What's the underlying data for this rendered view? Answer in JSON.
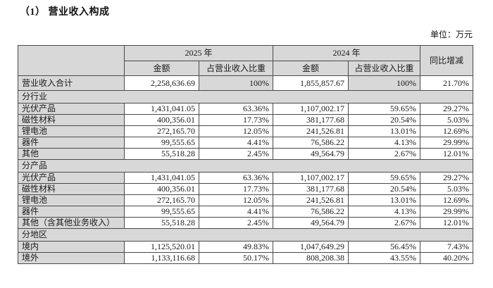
{
  "title": "（1） 营业收入构成",
  "unit_label": "单位：万元",
  "table": {
    "header": {
      "year_2025": "2025 年",
      "year_2024": "2024 年",
      "yoy": "同比增减",
      "amount": "金额",
      "share": "占营业收入比重"
    },
    "rows": [
      {
        "type": "total",
        "label": "营业收入合计",
        "a2025": "2,258,636.69",
        "s2025": "100%",
        "a2024": "1,855,857.67",
        "s2024": "100%",
        "yoy": "21.70%"
      },
      {
        "type": "section",
        "label": "分行业"
      },
      {
        "type": "data",
        "label": "光伏产品",
        "a2025": "1,431,041.05",
        "s2025": "63.36%",
        "a2024": "1,107,002.17",
        "s2024": "59.65%",
        "yoy": "29.27%"
      },
      {
        "type": "data",
        "label": "磁性材料",
        "a2025": "400,356.01",
        "s2025": "17.73%",
        "a2024": "381,177.68",
        "s2024": "20.54%",
        "yoy": "5.03%"
      },
      {
        "type": "data",
        "label": "锂电池",
        "a2025": "272,165.70",
        "s2025": "12.05%",
        "a2024": "241,526.81",
        "s2024": "13.01%",
        "yoy": "12.69%"
      },
      {
        "type": "data",
        "label": "器件",
        "a2025": "99,555.65",
        "s2025": "4.41%",
        "a2024": "76,586.22",
        "s2024": "4.13%",
        "yoy": "29.99%"
      },
      {
        "type": "data",
        "label": "其他",
        "a2025": "55,518.28",
        "s2025": "2.45%",
        "a2024": "49,564.79",
        "s2024": "2.67%",
        "yoy": "12.01%"
      },
      {
        "type": "section",
        "label": "分产品"
      },
      {
        "type": "data",
        "label": "光伏产品",
        "a2025": "1,431,041.05",
        "s2025": "63.36%",
        "a2024": "1,107,002.17",
        "s2024": "59.65%",
        "yoy": "29.27%"
      },
      {
        "type": "data",
        "label": "磁性材料",
        "a2025": "400,356.01",
        "s2025": "17.73%",
        "a2024": "381,177.68",
        "s2024": "20.54%",
        "yoy": "5.03%"
      },
      {
        "type": "data",
        "label": "锂电池",
        "a2025": "272,165.70",
        "s2025": "12.05%",
        "a2024": "241,526.81",
        "s2024": "13.01%",
        "yoy": "12.69%"
      },
      {
        "type": "data",
        "label": "器件",
        "a2025": "99,555.65",
        "s2025": "4.41%",
        "a2024": "76,586.22",
        "s2024": "4.13%",
        "yoy": "29.99%"
      },
      {
        "type": "data",
        "label": "其他（含其他业务收入）",
        "a2025": "55,518.28",
        "s2025": "2.45%",
        "a2024": "49,564.79",
        "s2024": "2.67%",
        "yoy": "12.01%"
      },
      {
        "type": "section",
        "label": "分地区"
      },
      {
        "type": "data",
        "label": "境内",
        "a2025": "1,125,520.01",
        "s2025": "49.83%",
        "a2024": "1,047,649.29",
        "s2024": "56.45%",
        "yoy": "7.43%"
      },
      {
        "type": "data",
        "label": "境外",
        "a2025": "1,133,116.68",
        "s2025": "50.17%",
        "a2024": "808,208.38",
        "s2024": "43.55%",
        "yoy": "40.20%"
      }
    ]
  }
}
